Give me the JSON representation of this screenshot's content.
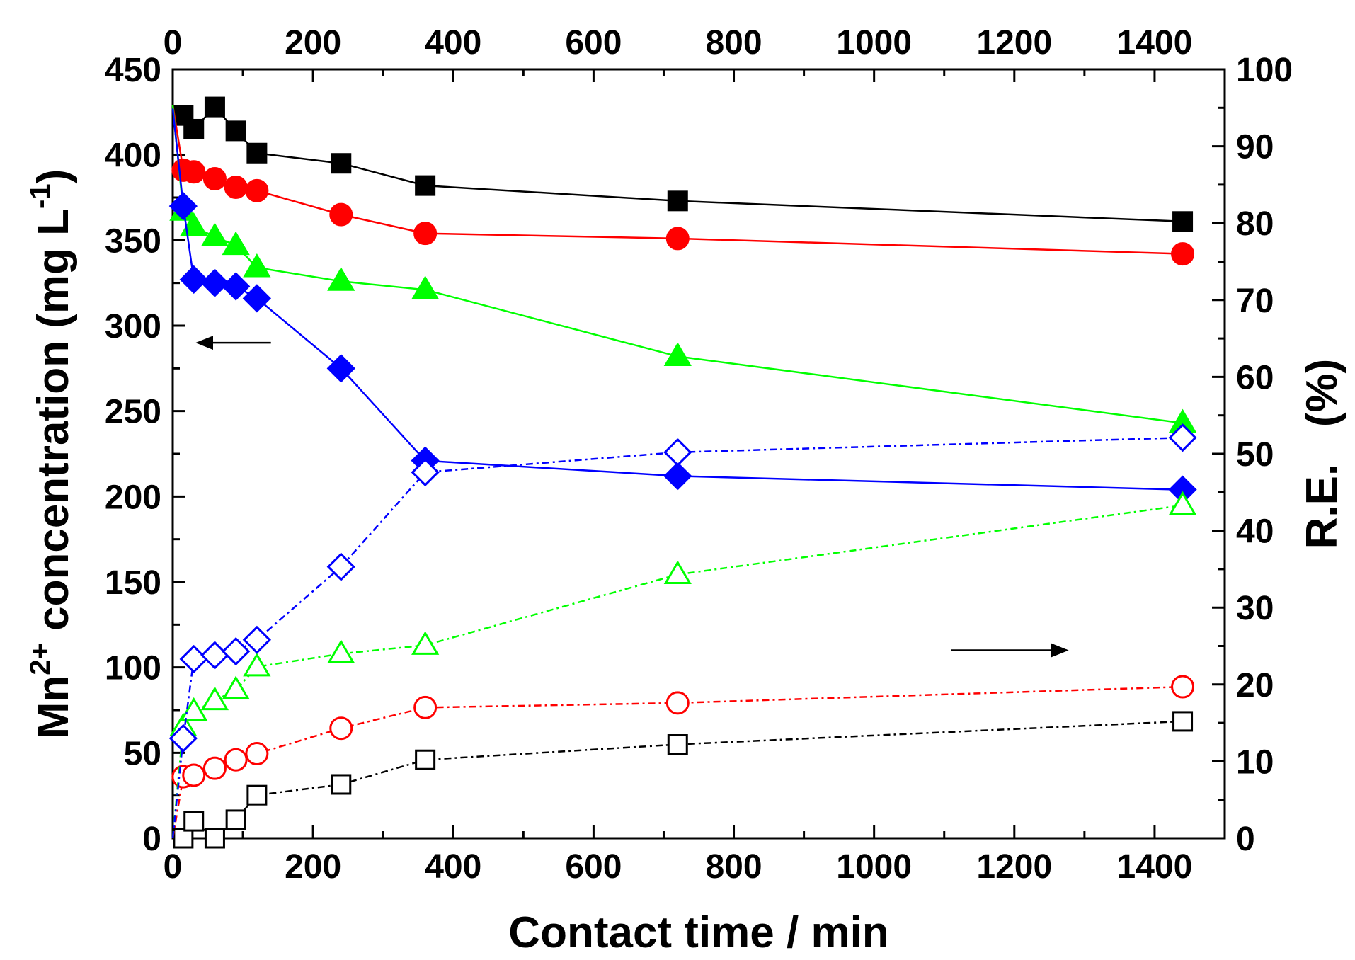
{
  "chart_data": {
    "type": "line",
    "xlabel": "Contact time / min",
    "ylabel_left": {
      "pre": "Mn",
      "sup": "2+",
      "mid": " concentration (mg L",
      "sup2": "-1",
      "post": ")"
    },
    "ylabel_right": "R.E.   (%)",
    "xlim": [
      0,
      1500
    ],
    "ylim_left": [
      0,
      450
    ],
    "ylim_right": [
      0,
      100
    ],
    "x_ticks": [
      0,
      200,
      400,
      600,
      800,
      1000,
      1200,
      1400
    ],
    "y_left_ticks": [
      0,
      50,
      100,
      150,
      200,
      250,
      300,
      350,
      400,
      450
    ],
    "y_right_ticks": [
      0,
      10,
      20,
      30,
      40,
      50,
      60,
      70,
      80,
      90,
      100
    ],
    "x": [
      0,
      15,
      30,
      60,
      90,
      120,
      240,
      360,
      720,
      1440
    ],
    "series": [
      {
        "name": "black-concentration",
        "axis": "left",
        "marker": "square",
        "filled": true,
        "color": "#000000",
        "dash": "solid",
        "x": [
          0,
          15,
          30,
          60,
          90,
          120,
          240,
          360,
          720,
          1440
        ],
        "values": [
          429,
          423,
          415,
          428,
          414,
          401,
          395,
          382,
          373,
          361
        ]
      },
      {
        "name": "red-concentration",
        "axis": "left",
        "marker": "circle",
        "filled": true,
        "color": "#ff0000",
        "dash": "solid",
        "x": [
          0,
          15,
          30,
          60,
          90,
          120,
          240,
          360,
          720,
          1440
        ],
        "values": [
          429,
          391,
          390,
          386,
          381,
          379,
          365,
          354,
          351,
          342
        ]
      },
      {
        "name": "green-concentration",
        "axis": "left",
        "marker": "triangle",
        "filled": true,
        "color": "#00ff00",
        "dash": "solid",
        "x": [
          0,
          15,
          30,
          60,
          90,
          120,
          240,
          360,
          720,
          1440
        ],
        "values": [
          429,
          367,
          358,
          352,
          347,
          334,
          326,
          321,
          282,
          243
        ]
      },
      {
        "name": "blue-concentration",
        "axis": "left",
        "marker": "diamond",
        "filled": true,
        "color": "#0000ff",
        "dash": "solid",
        "x": [
          0,
          15,
          30,
          60,
          90,
          120,
          240,
          360,
          720,
          1440
        ],
        "values": [
          427,
          370,
          327,
          325,
          323,
          316,
          275,
          221,
          212,
          204
        ]
      },
      {
        "name": "black-removal",
        "axis": "right",
        "marker": "square",
        "filled": false,
        "color": "#000000",
        "dash": "dashdot",
        "x": [
          0,
          15,
          30,
          60,
          90,
          120,
          240,
          360,
          720,
          1440
        ],
        "values": [
          0,
          0,
          2.2,
          0,
          2.4,
          5.6,
          7.0,
          10.2,
          12.2,
          15.2
        ]
      },
      {
        "name": "red-removal",
        "axis": "right",
        "marker": "circle",
        "filled": false,
        "color": "#ff0000",
        "dash": "dashdot",
        "x": [
          0,
          15,
          30,
          60,
          90,
          120,
          240,
          360,
          720,
          1440
        ],
        "values": [
          0,
          8.0,
          8.2,
          9.1,
          10.2,
          11.0,
          14.3,
          17.0,
          17.6,
          19.7
        ]
      },
      {
        "name": "green-removal",
        "axis": "right",
        "marker": "triangle",
        "filled": false,
        "color": "#00ff00",
        "dash": "dashdot",
        "x": [
          0,
          15,
          30,
          60,
          90,
          120,
          240,
          360,
          720,
          1440
        ],
        "values": [
          0,
          14.5,
          16.5,
          17.9,
          19.3,
          22.3,
          24.0,
          25.1,
          34.3,
          43.3
        ]
      },
      {
        "name": "blue-removal",
        "axis": "right",
        "marker": "diamond",
        "filled": false,
        "color": "#0000ff",
        "dash": "dashdot",
        "x": [
          0,
          15,
          30,
          60,
          90,
          120,
          240,
          360,
          720,
          1440
        ],
        "values": [
          0,
          13.0,
          23.3,
          23.8,
          24.3,
          25.8,
          35.3,
          47.6,
          50.2,
          52.1
        ]
      }
    ],
    "annotations": [
      {
        "name": "left-axis-arrow",
        "direction": "left",
        "x_from": 140,
        "x_to": 35,
        "y_left": 290
      },
      {
        "name": "right-axis-arrow",
        "direction": "right",
        "x_from": 1110,
        "x_to": 1275,
        "y_left": 110
      }
    ]
  }
}
